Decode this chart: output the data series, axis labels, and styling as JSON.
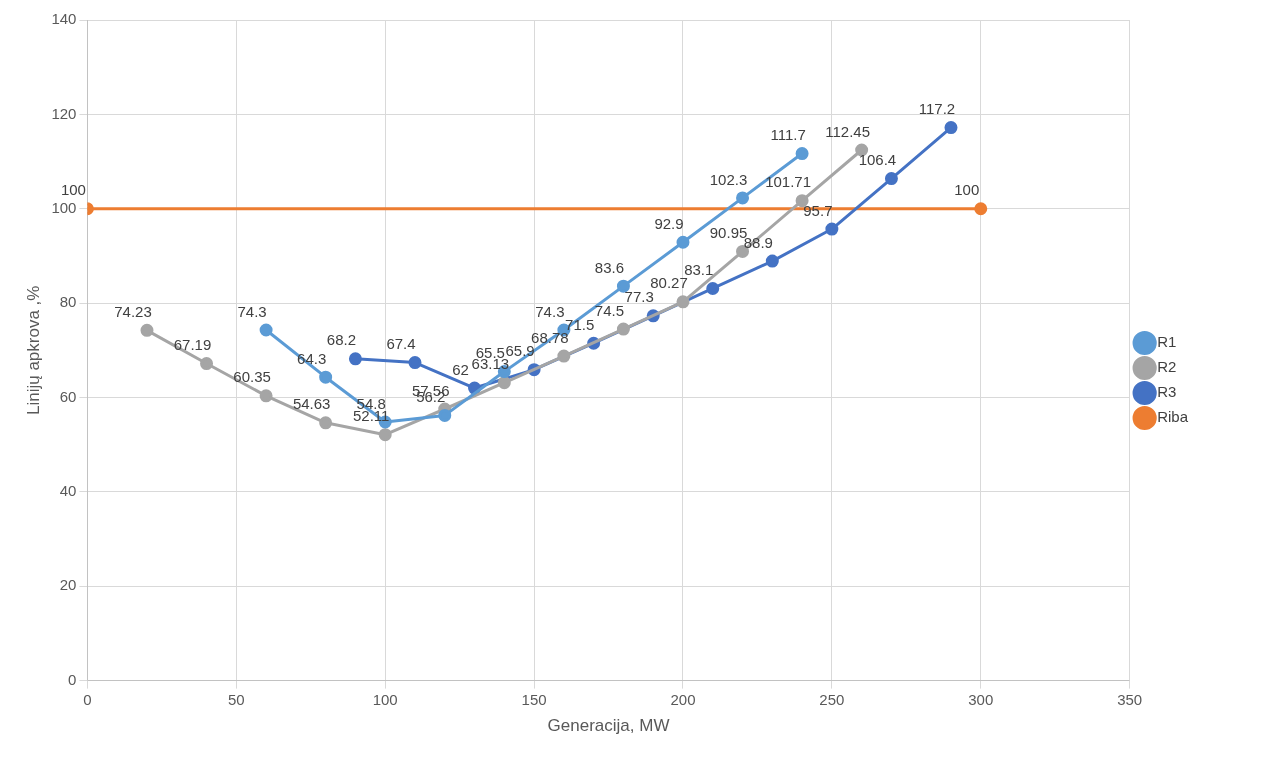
{
  "chart_data": {
    "type": "line",
    "xlabel": "Generacija, MW",
    "ylabel": "Linijų apkrova ,%",
    "xlim": [
      0,
      350
    ],
    "xticks": [
      0,
      50,
      100,
      150,
      200,
      250,
      300,
      350
    ],
    "ylim": [
      0,
      140
    ],
    "yticks": [
      0,
      20,
      40,
      60,
      80,
      100,
      120,
      140
    ],
    "grid": true,
    "legend": "right",
    "marker": "circle",
    "line_style": "solid",
    "data_labels": true,
    "series": [
      {
        "name": "R1",
        "color": "#5b9bd5",
        "x": [
          60,
          80,
          100,
          120,
          140,
          160,
          180,
          200,
          220,
          240
        ],
        "values": [
          74.3,
          64.3,
          54.8,
          56.2,
          65.5,
          74.3,
          83.6,
          92.9,
          102.3,
          111.7
        ]
      },
      {
        "name": "R2",
        "color": "#a5a5a5",
        "x": [
          20,
          40,
          60,
          80,
          100,
          120,
          140,
          160,
          180,
          200,
          220,
          240,
          260
        ],
        "values": [
          74.23,
          67.19,
          60.35,
          54.63,
          52.11,
          57.56,
          63.13,
          68.78,
          74.5,
          80.27,
          90.95,
          101.71,
          112.45
        ]
      },
      {
        "name": "R3",
        "color": "#4472c4",
        "x": [
          90,
          110,
          130,
          150,
          170,
          190,
          210,
          230,
          250,
          270,
          290
        ],
        "values": [
          68.2,
          67.4,
          62,
          65.9,
          71.5,
          77.3,
          83.1,
          88.9,
          95.7,
          106.4,
          117.2
        ]
      },
      {
        "name": "Riba",
        "color": "#ed7d31",
        "x": [
          0,
          300
        ],
        "values": [
          100,
          100
        ]
      }
    ]
  }
}
